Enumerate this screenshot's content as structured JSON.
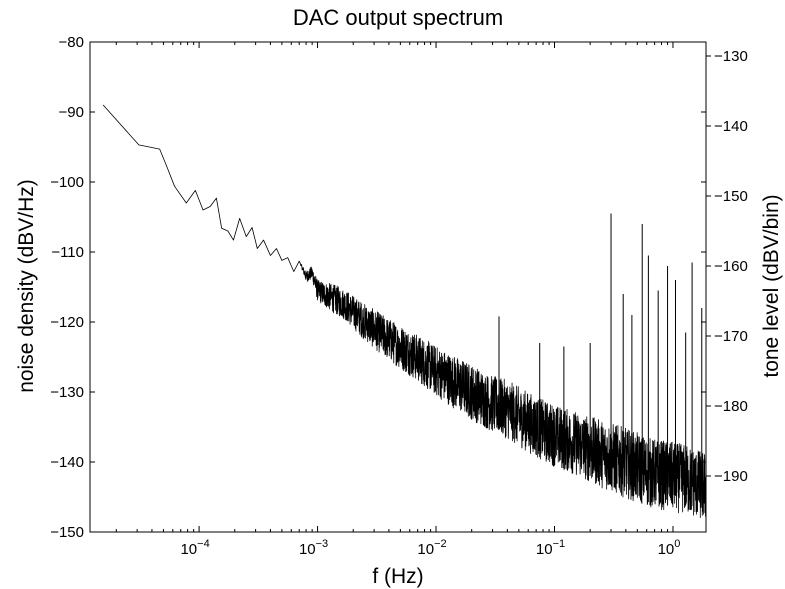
{
  "chart_data": {
    "type": "line",
    "title": "DAC output spectrum",
    "xlabel": "f (Hz)",
    "ylabel": "noise density (dBV/Hz)",
    "ylabel_right": "tone level (dBV/bin)",
    "xscale": "log",
    "xlim": [
      1.2e-05,
      1.9
    ],
    "ylim": [
      -150,
      -80
    ],
    "ylim_right": [
      -198,
      -128
    ],
    "grid": false,
    "x_ticks": [
      {
        "value": 0.0001,
        "mant": "10",
        "exp": "−4"
      },
      {
        "value": 0.001,
        "mant": "10",
        "exp": "−3"
      },
      {
        "value": 0.01,
        "mant": "10",
        "exp": "−2"
      },
      {
        "value": 0.1,
        "mant": "10",
        "exp": "−1"
      },
      {
        "value": 1,
        "mant": "10",
        "exp": "0"
      }
    ],
    "y_ticks": [
      {
        "value": -150,
        "label": "−150"
      },
      {
        "value": -140,
        "label": "−140"
      },
      {
        "value": -130,
        "label": "−130"
      },
      {
        "value": -120,
        "label": "−120"
      },
      {
        "value": -110,
        "label": "−110"
      },
      {
        "value": -100,
        "label": "−100"
      },
      {
        "value": -90,
        "label": "−90"
      },
      {
        "value": -80,
        "label": "−80"
      }
    ],
    "y_right_ticks": [
      {
        "value": -190,
        "label": "−190"
      },
      {
        "value": -180,
        "label": "−180"
      },
      {
        "value": -170,
        "label": "−170"
      },
      {
        "value": -160,
        "label": "−160"
      },
      {
        "value": -150,
        "label": "−150"
      },
      {
        "value": -140,
        "label": "−140"
      },
      {
        "value": -130,
        "label": "−130"
      }
    ],
    "series": [
      {
        "color": "#000000",
        "x": [
          1.55e-05,
          3.1e-05,
          4.65e-05,
          5.4e-05,
          6.2e-05,
          7.8e-05,
          9.3e-05,
          0.000108,
          0.000124,
          0.00014,
          0.000155,
          0.000175,
          0.000195,
          0.00022,
          0.00025,
          0.00028,
          0.00031,
          0.00035,
          0.0004,
          0.00045,
          0.0005,
          0.00056,
          0.00063,
          0.0007,
          0.0008,
          0.0009,
          0.001,
          0.0013,
          0.0017,
          0.0023,
          0.003,
          0.004,
          0.0055,
          0.0075,
          0.01,
          0.014,
          0.02,
          0.028,
          0.04,
          0.056,
          0.08,
          0.11,
          0.16,
          0.22,
          0.32,
          0.45,
          0.63,
          0.9,
          1.3,
          1.8
        ],
        "y": [
          -89,
          -94.7,
          -95.3,
          -98,
          -100.6,
          -103,
          -101.2,
          -104,
          -103.5,
          -102.3,
          -106.6,
          -107,
          -108.3,
          -105.2,
          -107.8,
          -106.5,
          -109.5,
          -108.3,
          -110.5,
          -109.5,
          -111.2,
          -110.8,
          -112.8,
          -111.3,
          -113.5,
          -113,
          -115.5,
          -116.5,
          -117.5,
          -119.5,
          -121,
          -122.5,
          -124,
          -125.5,
          -127,
          -128.5,
          -130,
          -131.5,
          -132.5,
          -134,
          -135.5,
          -136.5,
          -137.5,
          -138.5,
          -139.5,
          -140.5,
          -141.5,
          -142,
          -142.5,
          -143.5
        ],
        "spread": [
          0,
          0,
          0,
          0,
          0,
          0,
          0,
          0,
          0,
          0,
          0,
          0,
          0,
          0,
          0,
          0,
          0,
          0,
          0,
          0,
          0,
          0,
          0,
          0,
          0.8,
          1,
          1.5,
          2,
          2.2,
          2.5,
          2.8,
          3,
          3.2,
          3.4,
          3.6,
          3.8,
          4,
          4,
          4.2,
          4.3,
          4.4,
          4.5,
          4.6,
          4.8,
          5,
          5,
          5,
          5,
          5,
          5
        ]
      }
    ],
    "spurs": [
      {
        "x": 0.034,
        "y": -119.2
      },
      {
        "x": 0.075,
        "y": -123
      },
      {
        "x": 0.12,
        "y": -123.5
      },
      {
        "x": 0.2,
        "y": -123
      },
      {
        "x": 0.3,
        "y": -104.5
      },
      {
        "x": 0.38,
        "y": -116
      },
      {
        "x": 0.45,
        "y": -119
      },
      {
        "x": 0.55,
        "y": -106
      },
      {
        "x": 0.62,
        "y": -110.5
      },
      {
        "x": 0.75,
        "y": -115.5
      },
      {
        "x": 0.9,
        "y": -112
      },
      {
        "x": 1.05,
        "y": -114
      },
      {
        "x": 1.28,
        "y": -121.5
      },
      {
        "x": 1.45,
        "y": -111.5
      },
      {
        "x": 1.75,
        "y": -118
      }
    ]
  }
}
